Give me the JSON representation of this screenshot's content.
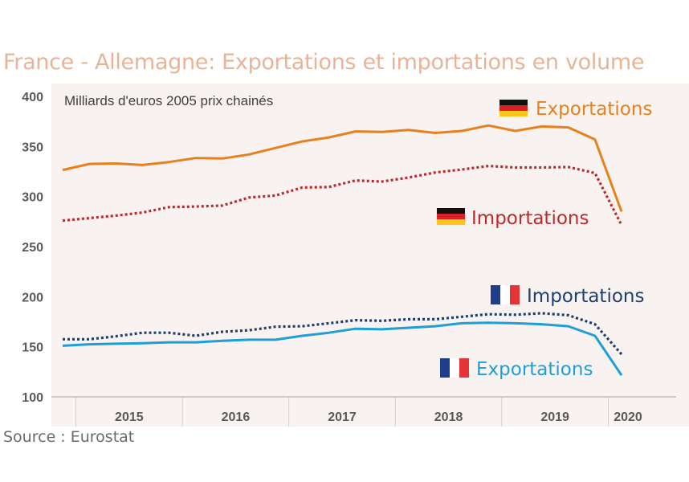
{
  "title": "France - Allemagne: Exportations et importations en volume",
  "source": "Source : Eurostat",
  "chart_data": {
    "type": "line",
    "title": "France - Allemagne: Exportations et importations en volume",
    "ylabel": "Milliards d'euros 2005 prix chainés",
    "ylim": [
      100,
      400
    ],
    "yticks": [
      "400",
      "350",
      "300",
      "250",
      "200",
      "150",
      "100"
    ],
    "x_quarters": [
      "2014 Q4",
      "2015 Q1",
      "2015 Q2",
      "2015 Q3",
      "2015 Q4",
      "2016 Q1",
      "2016 Q2",
      "2016 Q3",
      "2016 Q4",
      "2017 Q1",
      "2017 Q2",
      "2017 Q3",
      "2017 Q4",
      "2018 Q1",
      "2018 Q2",
      "2018 Q3",
      "2018 Q4",
      "2019 Q1",
      "2019 Q2",
      "2019 Q3",
      "2019 Q4",
      "2020 Q1"
    ],
    "xticks": [
      "2015",
      "2016",
      "2017",
      "2018",
      "2019",
      "2020"
    ],
    "grid": false,
    "legend": "inline-labels",
    "series": [
      {
        "name": "Exportations",
        "country": "Allemagne",
        "color": "#e8801e",
        "style": "solid",
        "values": [
          326.5,
          332.5,
          333.0,
          331.5,
          334.5,
          338.5,
          338.0,
          342.0,
          348.5,
          355.0,
          359.0,
          365.0,
          364.5,
          366.5,
          363.5,
          365.5,
          371.0,
          365.5,
          370.0,
          369.0,
          357.0,
          285.0
        ]
      },
      {
        "name": "Importations",
        "country": "Allemagne",
        "color": "#c0282e",
        "style": "dotted",
        "values": [
          276.0,
          278.5,
          281.0,
          284.0,
          289.5,
          290.0,
          291.0,
          299.0,
          301.0,
          309.0,
          309.5,
          316.0,
          315.0,
          319.0,
          324.0,
          327.0,
          330.5,
          329.0,
          329.0,
          329.5,
          323.5,
          271.5
        ]
      },
      {
        "name": "Importations",
        "country": "France",
        "color": "#1f3e6e",
        "style": "dotted",
        "values": [
          157.5,
          157.5,
          160.5,
          164.0,
          164.0,
          161.0,
          165.0,
          166.5,
          170.0,
          170.5,
          173.5,
          176.5,
          176.0,
          177.5,
          177.5,
          180.0,
          182.5,
          182.0,
          183.5,
          181.5,
          172.5,
          142.5
        ]
      },
      {
        "name": "Exportations",
        "country": "France",
        "color": "#1e9fd8",
        "style": "solid",
        "values": [
          151.0,
          152.5,
          153.0,
          153.5,
          154.5,
          154.5,
          156.0,
          157.0,
          157.0,
          161.0,
          164.0,
          168.0,
          167.5,
          169.0,
          170.5,
          173.5,
          174.0,
          173.5,
          172.5,
          170.5,
          161.0,
          121.5
        ]
      }
    ]
  }
}
